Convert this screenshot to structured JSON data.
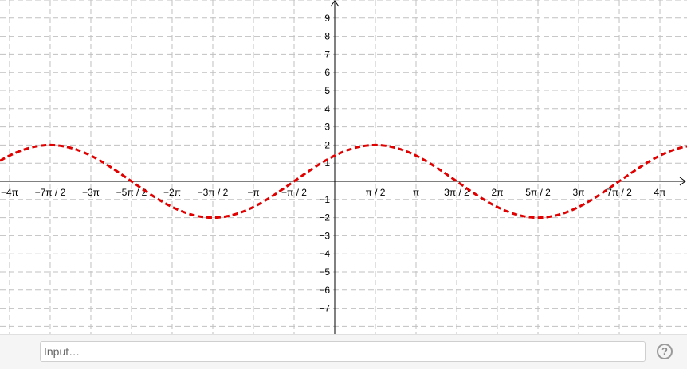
{
  "graphics": {
    "x_ticks": [
      {
        "label": "−4π",
        "value": -12.566
      },
      {
        "label": "−7π / 2",
        "value": -10.996
      },
      {
        "label": "−3π",
        "value": -9.425
      },
      {
        "label": "−5π / 2",
        "value": -7.854
      },
      {
        "label": "−2π",
        "value": -6.283
      },
      {
        "label": "−3π / 2",
        "value": -4.712
      },
      {
        "label": "−π",
        "value": -3.142
      },
      {
        "label": "−π / 2",
        "value": -1.571
      },
      {
        "label": "π / 2",
        "value": 1.571
      },
      {
        "label": "π",
        "value": 3.142
      },
      {
        "label": "3π / 2",
        "value": 4.712
      },
      {
        "label": "2π",
        "value": 6.283
      },
      {
        "label": "5π / 2",
        "value": 7.854
      },
      {
        "label": "3π",
        "value": 9.425
      },
      {
        "label": "7π / 2",
        "value": 10.996
      },
      {
        "label": "4π",
        "value": 12.566
      }
    ],
    "y_ticks": [
      "9",
      "8",
      "7",
      "6",
      "5",
      "4",
      "3",
      "2",
      "1",
      "−1",
      "−2",
      "−3",
      "−4",
      "−5",
      "−6",
      "−7"
    ],
    "y_tick_values": [
      9,
      8,
      7,
      6,
      5,
      4,
      3,
      2,
      1,
      -1,
      -2,
      -3,
      -4,
      -5,
      -6,
      -7
    ],
    "x_range": [
      -13,
      13.7
    ],
    "y_range": [
      -8.5,
      9.9
    ],
    "curve": {
      "amplitude": 2,
      "period": 12.566,
      "peak_at_x": 0.785,
      "color": "#e00000",
      "style": "dashed"
    }
  },
  "input_bar": {
    "placeholder": "Input…",
    "help_label": "?"
  }
}
